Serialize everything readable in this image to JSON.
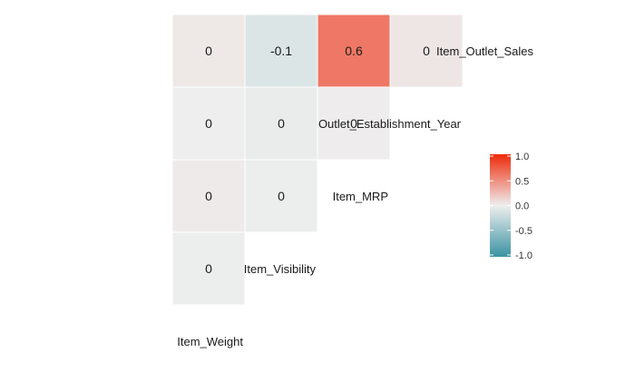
{
  "chart_data": {
    "type": "heatmap",
    "variables": [
      "Item_Weight",
      "Item_Visibility",
      "Item_MRP",
      "Outlet_Establishment_Year",
      "Item_Outlet_Sales"
    ],
    "cells": [
      {
        "row": "Item_Visibility",
        "col": "Item_Weight",
        "value": -0.01,
        "label": "0"
      },
      {
        "row": "Item_MRP",
        "col": "Item_Weight",
        "value": 0.02,
        "label": "0"
      },
      {
        "row": "Outlet_Establishment_Year",
        "col": "Item_Weight",
        "value": 0.0,
        "label": "0"
      },
      {
        "row": "Item_Outlet_Sales",
        "col": "Item_Weight",
        "value": 0.03,
        "label": "0"
      },
      {
        "row": "Item_MRP",
        "col": "Item_Visibility",
        "value": -0.01,
        "label": "0"
      },
      {
        "row": "Outlet_Establishment_Year",
        "col": "Item_Visibility",
        "value": -0.02,
        "label": "0"
      },
      {
        "row": "Item_Outlet_Sales",
        "col": "Item_Visibility",
        "value": -0.1,
        "label": "-0.1"
      },
      {
        "row": "Outlet_Establishment_Year",
        "col": "Item_MRP",
        "value": 0.01,
        "label": "0"
      },
      {
        "row": "Item_Outlet_Sales",
        "col": "Item_MRP",
        "value": 0.6,
        "label": "0.6"
      },
      {
        "row": "Item_Outlet_Sales",
        "col": "Outlet_Establishment_Year",
        "value": 0.04,
        "label": "0"
      }
    ],
    "color_scale": {
      "low": "#3a93a2",
      "mid": "#eeeeee",
      "high": "#ee2a0a",
      "range": [
        -1,
        1
      ]
    },
    "legend": {
      "position": "right",
      "ticks": [
        "1.0",
        "0.5",
        "0.0",
        "-0.5",
        "-1.0"
      ],
      "tick_values": [
        1.0,
        0.5,
        0.0,
        -0.5,
        -1.0
      ]
    }
  }
}
